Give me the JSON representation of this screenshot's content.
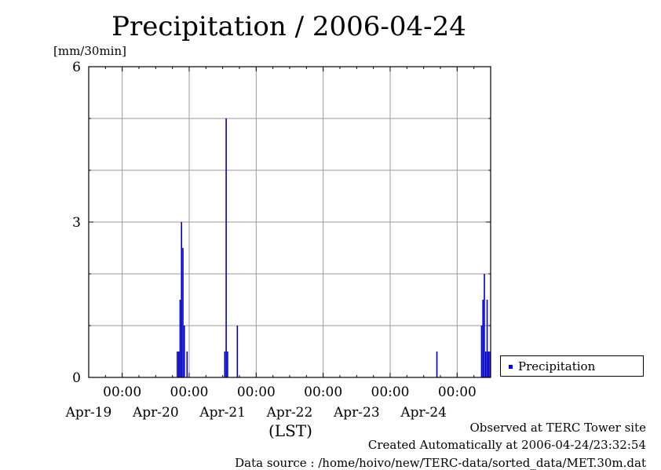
{
  "chart_data": {
    "type": "bar",
    "title": "Precipitation / 2006-04-24",
    "ylabel": "[mm/30min]",
    "xlabel": "(LST)",
    "ylim": [
      0,
      6
    ],
    "yticks": [
      "0",
      "3",
      "6"
    ],
    "xlim": [
      "2006-04-18T12:00",
      "2006-04-24T12:00"
    ],
    "xticks": [
      {
        "time": "00:00",
        "date": "Apr-19"
      },
      {
        "time": "00:00",
        "date": "Apr-20"
      },
      {
        "time": "00:00",
        "date": "Apr-21"
      },
      {
        "time": "00:00",
        "date": "Apr-22"
      },
      {
        "time": "00:00",
        "date": "Apr-23"
      },
      {
        "time": "00:00",
        "date": "Apr-24"
      }
    ],
    "grid": true,
    "legend_position": "right",
    "series": [
      {
        "name": "Precipitation",
        "color": "#0000cc",
        "points": [
          {
            "x": "2006-04-19T19:30",
            "y": 0.5
          },
          {
            "x": "2006-04-19T20:00",
            "y": 0.5
          },
          {
            "x": "2006-04-19T20:30",
            "y": 1.5
          },
          {
            "x": "2006-04-19T21:00",
            "y": 3.0
          },
          {
            "x": "2006-04-19T21:30",
            "y": 2.5
          },
          {
            "x": "2006-04-19T22:00",
            "y": 1.0
          },
          {
            "x": "2006-04-19T23:00",
            "y": 0.5
          },
          {
            "x": "2006-04-20T12:30",
            "y": 0.5
          },
          {
            "x": "2006-04-20T13:00",
            "y": 5.0
          },
          {
            "x": "2006-04-20T13:30",
            "y": 0.5
          },
          {
            "x": "2006-04-20T17:00",
            "y": 1.0
          },
          {
            "x": "2006-04-23T16:30",
            "y": 0.5
          },
          {
            "x": "2006-04-24T08:30",
            "y": 1.0
          },
          {
            "x": "2006-04-24T09:00",
            "y": 1.5
          },
          {
            "x": "2006-04-24T09:30",
            "y": 2.0
          },
          {
            "x": "2006-04-24T10:00",
            "y": 0.5
          },
          {
            "x": "2006-04-24T10:30",
            "y": 1.5
          },
          {
            "x": "2006-04-24T11:00",
            "y": 0.5
          },
          {
            "x": "2006-04-24T11:30",
            "y": 0.5
          }
        ]
      }
    ]
  },
  "footer": {
    "line1": "Observed at TERC Tower site",
    "line2": "Created Automatically at 2006-04-24/23:32:54",
    "line3": "Data source : /home/hoivo/new/TERC-data/sorted_data/MET.30m.dat"
  }
}
